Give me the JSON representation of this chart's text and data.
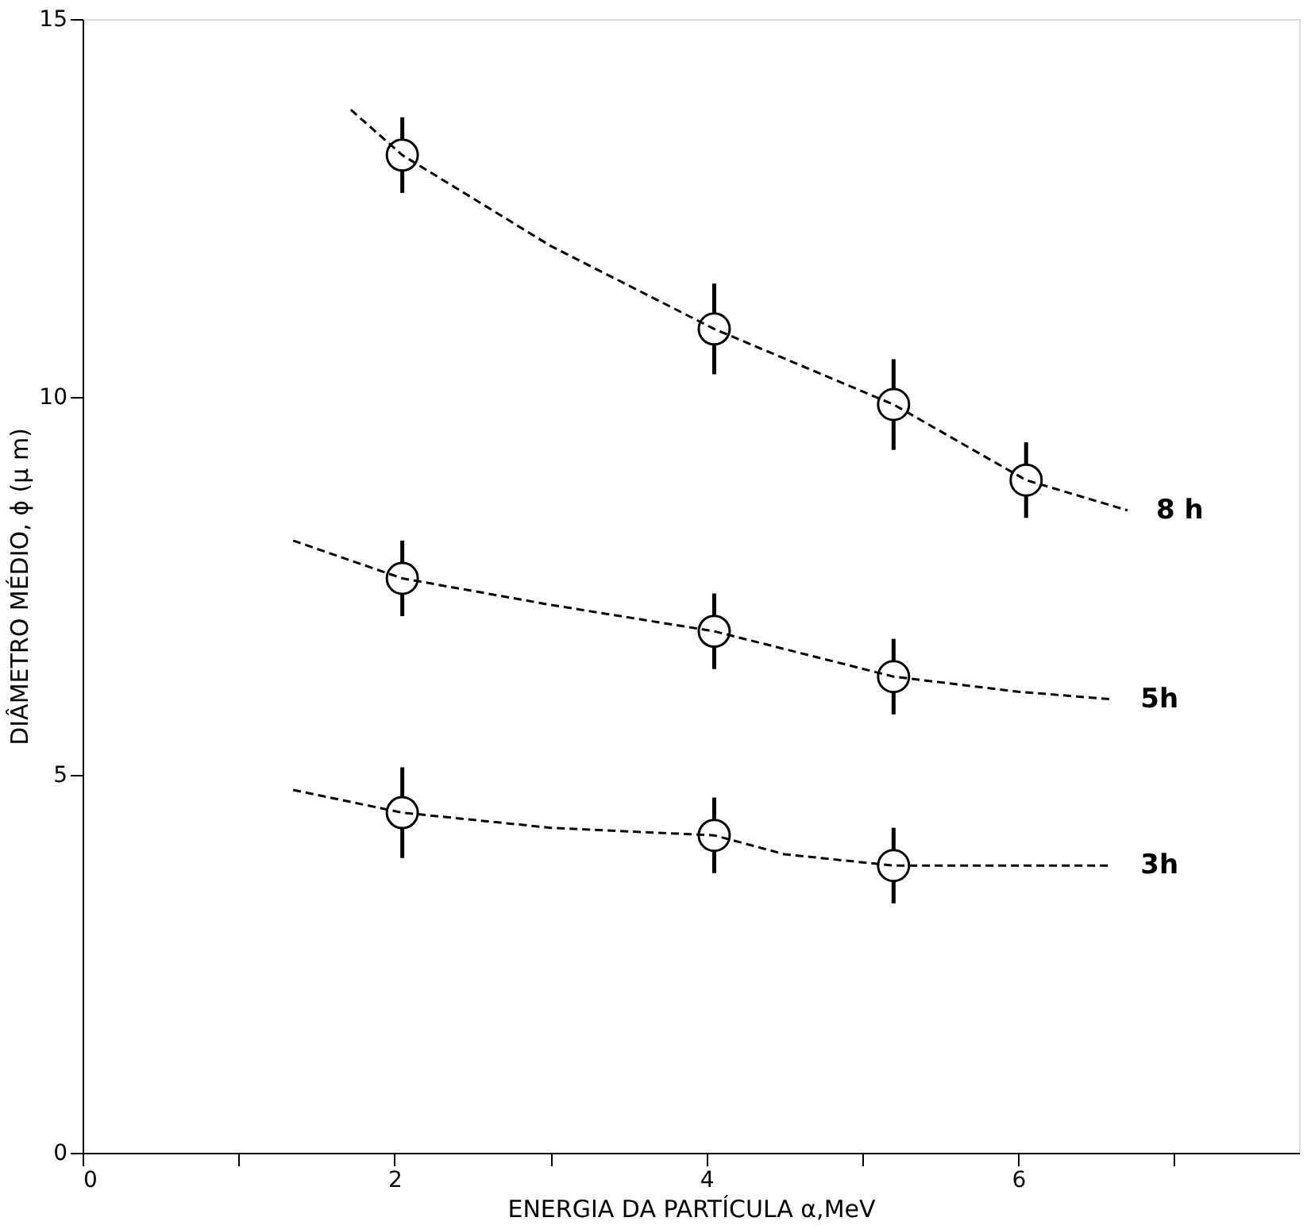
{
  "chart_data": {
    "type": "scatter",
    "xlabel": "ENERGIA DA PARTÍCULA α,MeV",
    "ylabel": "DIÂMETRO MÉDIO, ϕ (μ m)",
    "xlim": [
      0,
      7.8
    ],
    "ylim": [
      0,
      15
    ],
    "xticks": [
      0,
      {
        "value": 1,
        "label": null
      },
      2,
      {
        "value": 3,
        "label": null
      },
      4,
      {
        "value": 5,
        "label": null
      },
      6,
      {
        "value": 7,
        "label": null
      }
    ],
    "yticks": [
      0,
      5,
      10,
      15
    ],
    "grid": false,
    "series": [
      {
        "color": "#000000",
        "marker": "circle",
        "x": [
          2.05,
          4.05,
          5.2,
          6.05
        ],
        "values": [
          13.2,
          10.9,
          9.9,
          8.9
        ],
        "errors": [
          0.5,
          0.6,
          0.6,
          0.5
        ]
      },
      {
        "color": "#000000",
        "marker": "circle",
        "x": [
          2.05,
          4.05,
          5.2
        ],
        "values": [
          7.6,
          6.9,
          6.3
        ],
        "errors": [
          0.5,
          0.5,
          0.5
        ]
      },
      {
        "color": "#000000",
        "marker": "circle",
        "x": [
          2.05,
          4.05,
          5.2
        ],
        "values": [
          4.5,
          4.2,
          3.8
        ],
        "errors": [
          0.6,
          0.5,
          0.5
        ]
      },
      {
        "type": "line",
        "name": "8 h",
        "color": "#000000",
        "line_style": "dashed",
        "marker": "none",
        "x": [
          1.72,
          2.05,
          3.0,
          4.05,
          5.2,
          6.05,
          6.7
        ],
        "values": [
          13.8,
          13.2,
          12.0,
          10.9,
          9.9,
          8.9,
          8.5
        ]
      },
      {
        "type": "line",
        "name": "5h",
        "color": "#000000",
        "line_style": "dashed",
        "marker": "none",
        "x": [
          1.35,
          2.05,
          3.0,
          4.05,
          5.2,
          6.0,
          6.6
        ],
        "values": [
          8.1,
          7.6,
          7.25,
          6.9,
          6.3,
          6.1,
          6.0
        ]
      },
      {
        "type": "line",
        "name": "3h",
        "color": "#000000",
        "line_style": "dashed",
        "marker": "none",
        "x": [
          1.35,
          2.05,
          3.0,
          4.05,
          4.5,
          5.2,
          6.6
        ],
        "values": [
          4.8,
          4.5,
          4.3,
          4.2,
          3.95,
          3.8,
          3.8
        ]
      }
    ]
  }
}
